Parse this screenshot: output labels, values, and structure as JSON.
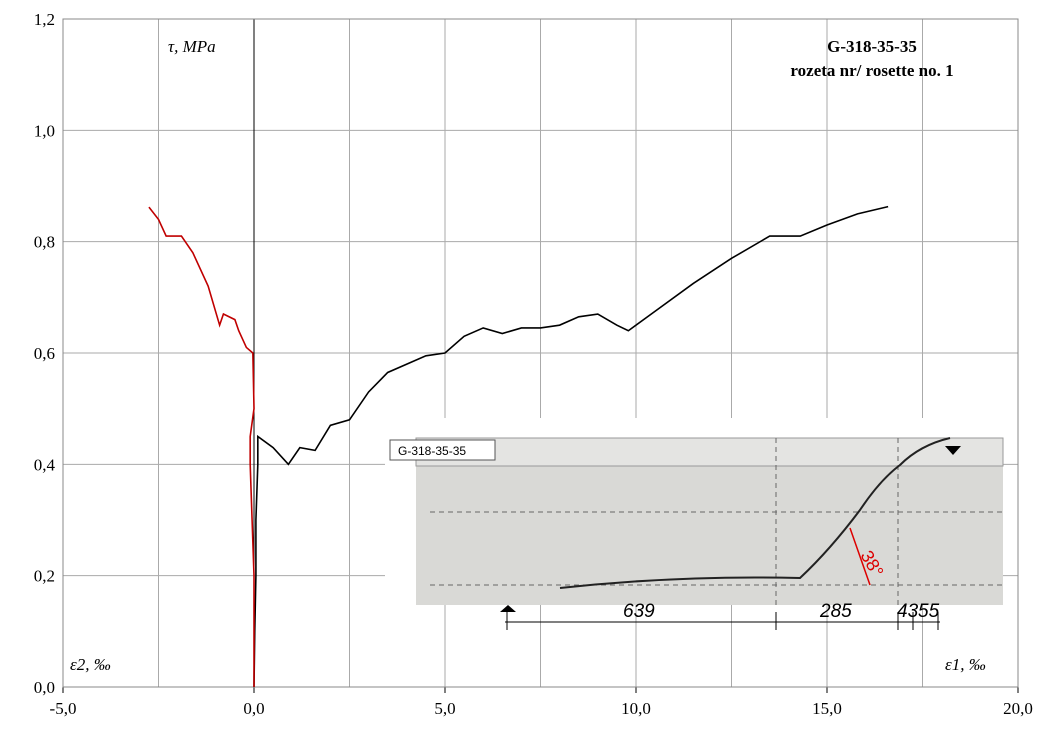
{
  "chart_data": {
    "type": "line",
    "annotations": [
      "G-318-35-35",
      "rozeta nr/ rosette no. 1"
    ],
    "y_label": "τ, MPa",
    "x_label_left": "ε2, ‰",
    "x_label_right": "ε1, ‰",
    "xlim": [
      -5,
      20
    ],
    "ylim": [
      0,
      1.2
    ],
    "xticks": [
      {
        "value": -5,
        "label": "-5,0"
      },
      {
        "value": 0,
        "label": "0,0"
      },
      {
        "value": 5,
        "label": "5,0"
      },
      {
        "value": 10,
        "label": "10,0"
      },
      {
        "value": 15,
        "label": "15,0"
      },
      {
        "value": 20,
        "label": "20,0"
      }
    ],
    "xminor": [
      -2.5,
      2.5,
      7.5,
      12.5,
      17.5
    ],
    "yticks": [
      {
        "value": 0,
        "label": "0,0"
      },
      {
        "value": 0.2,
        "label": "0,2"
      },
      {
        "value": 0.4,
        "label": "0,4"
      },
      {
        "value": 0.6,
        "label": "0,6"
      },
      {
        "value": 0.8,
        "label": "0,8"
      },
      {
        "value": 1,
        "label": "1,0"
      },
      {
        "value": 1.2,
        "label": "1,2"
      }
    ],
    "grid": true,
    "series": [
      {
        "color": "#000000",
        "x": [
          0,
          0.02,
          0.05,
          0.05,
          0.1,
          0.1,
          0.5,
          0.9,
          1.2,
          1.6,
          2.0,
          2.5,
          3.0,
          3.5,
          4.0,
          4.5,
          5.0,
          5.5,
          6.0,
          6.5,
          7.0,
          7.5,
          8.0,
          8.5,
          9.0,
          9.5,
          9.8,
          10.5,
          11.5,
          12.5,
          13.5,
          14.3,
          15.0,
          15.8,
          16.6
        ],
        "values": [
          0,
          0.1,
          0.2,
          0.3,
          0.4,
          0.45,
          0.43,
          0.4,
          0.43,
          0.425,
          0.47,
          0.48,
          0.53,
          0.565,
          0.58,
          0.595,
          0.6,
          0.63,
          0.645,
          0.635,
          0.645,
          0.645,
          0.65,
          0.665,
          0.67,
          0.65,
          0.64,
          0.675,
          0.725,
          0.77,
          0.81,
          0.81,
          0.83,
          0.85,
          0.863
        ]
      },
      {
        "color": "#c00000",
        "x": [
          0,
          0,
          -0.05,
          -0.1,
          -0.1,
          0,
          -0.03,
          -0.2,
          -0.4,
          -0.5,
          -0.8,
          -0.9,
          -1.2,
          -1.6,
          -1.9,
          -2.3,
          -2.5,
          -2.75
        ],
        "values": [
          0,
          0.2,
          0.3,
          0.4,
          0.45,
          0.5,
          0.6,
          0.61,
          0.64,
          0.66,
          0.67,
          0.65,
          0.72,
          0.78,
          0.81,
          0.81,
          0.84,
          0.862
        ]
      }
    ],
    "inset": {
      "label": "G-318-35-35",
      "dims": [
        "639",
        "285",
        "43",
        "55"
      ],
      "angle": "38°"
    }
  }
}
